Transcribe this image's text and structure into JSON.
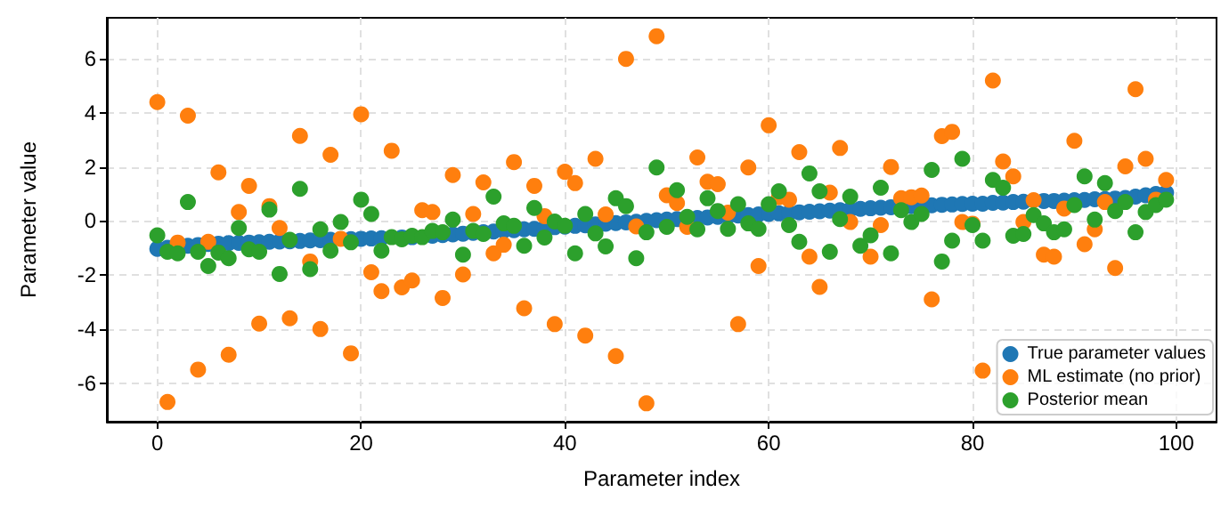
{
  "chart_data": {
    "type": "scatter",
    "xlabel": "Parameter index",
    "ylabel": "Parameter value",
    "x": [
      0,
      1,
      2,
      3,
      4,
      5,
      6,
      7,
      8,
      9,
      10,
      11,
      12,
      13,
      14,
      15,
      16,
      17,
      18,
      19,
      20,
      21,
      22,
      23,
      24,
      25,
      26,
      27,
      28,
      29,
      30,
      31,
      32,
      33,
      34,
      35,
      36,
      37,
      38,
      39,
      40,
      41,
      42,
      43,
      44,
      45,
      46,
      47,
      48,
      49,
      50,
      51,
      52,
      53,
      54,
      55,
      56,
      57,
      58,
      59,
      60,
      61,
      62,
      63,
      64,
      65,
      66,
      67,
      68,
      69,
      70,
      71,
      72,
      73,
      74,
      75,
      76,
      77,
      78,
      79,
      80,
      81,
      82,
      83,
      84,
      85,
      86,
      87,
      88,
      89,
      90,
      91,
      92,
      93,
      94,
      95,
      96,
      97,
      98,
      99
    ],
    "series": [
      {
        "name": "True parameter values",
        "color": "#1f77b4",
        "values": [
          -1.03,
          -0.99,
          null,
          -0.92,
          -0.89,
          -0.85,
          -0.84,
          -0.82,
          -0.81,
          -0.8,
          -0.79,
          -0.77,
          -0.76,
          -0.75,
          -0.74,
          -0.72,
          -0.71,
          -0.7,
          null,
          -0.67,
          -0.66,
          -0.65,
          -0.64,
          null,
          -0.61,
          -0.6,
          null,
          -0.55,
          -0.52,
          -0.5,
          -0.47,
          -0.44,
          -0.42,
          -0.39,
          -0.36,
          -0.34,
          -0.31,
          -0.29,
          -0.26,
          -0.23,
          -0.21,
          -0.18,
          -0.16,
          -0.13,
          -0.1,
          -0.08,
          -0.05,
          -0.03,
          0,
          0.03,
          0.05,
          0.07,
          null,
          0.11,
          0.13,
          0.15,
          0.17,
          0.2,
          0.22,
          0.24,
          0.26,
          0.28,
          0.3,
          0.32,
          0.34,
          0.36,
          0.38,
          0.4,
          0.42,
          0.45,
          0.47,
          0.49,
          0.51,
          null,
          0.55,
          0.57,
          0.58,
          0.6,
          0.61,
          0.63,
          0.64,
          0.64,
          0.67,
          0.68,
          0.7,
          0.71,
          null,
          0.74,
          0.74,
          0.75,
          0.77,
          0.78,
          0.8,
          0.81,
          0.83,
          0.85,
          0.9,
          0.95,
          1.0,
          1.05
        ]
      },
      {
        "name": "ML estimate (no prior)",
        "color": "#ff7f0e",
        "values": [
          4.4,
          -6.7,
          -0.8,
          3.9,
          -5.5,
          -0.77,
          1.8,
          -4.95,
          0.33,
          1.3,
          -3.8,
          0.55,
          -0.26,
          -3.6,
          3.15,
          -1.5,
          -4.0,
          2.45,
          -0.66,
          -4.9,
          3.95,
          -1.9,
          -2.6,
          2.6,
          -2.46,
          -2.2,
          0.4,
          0.33,
          -2.85,
          1.7,
          -1.98,
          0.26,
          1.43,
          -1.2,
          -0.88,
          2.18,
          -3.23,
          1.3,
          0.18,
          -3.82,
          1.82,
          1.4,
          -4.24,
          2.3,
          0.24,
          -5.0,
          6.0,
          -0.2,
          -6.75,
          6.84,
          0.95,
          0.66,
          -0.22,
          2.35,
          1.45,
          1.36,
          0.31,
          -3.82,
          1.98,
          -1.67,
          3.54,
          0.88,
          0.79,
          2.55,
          -1.32,
          -2.44,
          1.05,
          2.7,
          -0.04,
          null,
          -1.32,
          -0.15,
          2.0,
          0.84,
          0.88,
          0.94,
          -2.9,
          3.14,
          3.3,
          -0.04,
          -0.1,
          -5.54,
          5.2,
          2.2,
          1.65,
          -0.04,
          0.77,
          -1.25,
          -1.32,
          0.46,
          2.97,
          -0.86,
          -0.31,
          0.7,
          -1.74,
          2.02,
          4.88,
          2.3,
          0.79,
          1.52
        ]
      },
      {
        "name": "Posterior mean",
        "color": "#2ca02c",
        "values": [
          -0.53,
          -1.14,
          -1.2,
          0.7,
          -1.14,
          -1.67,
          -1.17,
          -1.38,
          -0.26,
          -1.05,
          -1.14,
          0.42,
          -1.96,
          -0.7,
          1.19,
          -1.78,
          -0.31,
          -1.1,
          -0.04,
          -0.79,
          0.79,
          0.26,
          -1.1,
          -0.6,
          -0.68,
          -0.55,
          -0.6,
          -0.37,
          -0.42,
          0.05,
          -1.25,
          -0.37,
          -0.48,
          0.9,
          -0.09,
          -0.18,
          -0.92,
          0.48,
          -0.61,
          -0.02,
          -0.18,
          -1.2,
          0.26,
          -0.46,
          -0.94,
          0.84,
          0.55,
          -1.38,
          -0.42,
          1.98,
          -0.22,
          1.14,
          0.15,
          -0.31,
          0.84,
          0.37,
          -0.29,
          0.62,
          -0.09,
          -0.29,
          0.62,
          1.1,
          -0.15,
          -0.77,
          1.76,
          1.1,
          -1.14,
          0.07,
          0.9,
          -0.92,
          -0.53,
          1.23,
          -1.2,
          0.4,
          -0.04,
          0.26,
          1.89,
          -1.5,
          -0.73,
          2.3,
          -0.15,
          -0.73,
          1.52,
          1.23,
          -0.55,
          -0.48,
          0.22,
          -0.09,
          -0.42,
          -0.31,
          0.59,
          1.65,
          0.05,
          1.4,
          0.37,
          0.7,
          -0.42,
          0.33,
          0.59,
          0.79
        ]
      }
    ],
    "xlim": [
      -4.95,
      103.95
    ],
    "xticks": [
      0,
      20,
      40,
      60,
      80,
      100
    ],
    "ylim": [
      -7.43,
      7.52
    ],
    "yticks": [
      -6,
      -4,
      -2,
      0,
      2,
      4,
      6
    ],
    "grid": true,
    "legend": "bottom right",
    "marker": "circle"
  }
}
